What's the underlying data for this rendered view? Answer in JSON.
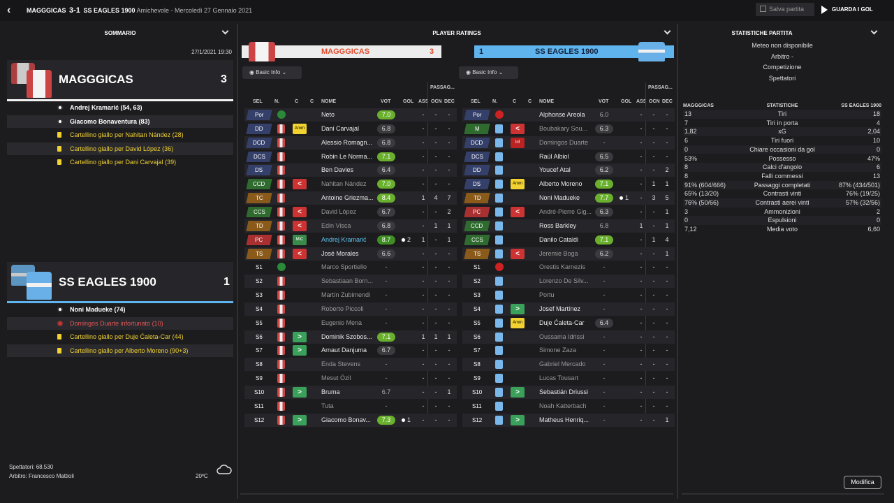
{
  "header": {
    "home": "MAGGGICAS",
    "score": "3-1",
    "away": "SS EAGLES 1900",
    "meta": "Amichevole - Mercoledì 27 Gennaio 2021",
    "save_label": "Salva partita",
    "goals_label": "GUARDA I GOL"
  },
  "summary": {
    "title": "SOMMARIO",
    "datetime": "27/1/2021 19:30",
    "home": {
      "name": "MAGGGICAS",
      "score": "3",
      "events": [
        {
          "type": "goal",
          "text": "Andrej Kramarić (54, 63)"
        },
        {
          "type": "goal",
          "text": "Giacomo Bonaventura (83)"
        },
        {
          "type": "yellow",
          "text": "Cartellino giallo per Nahitan Nández (28)"
        },
        {
          "type": "yellow",
          "text": "Cartellino giallo per David López (36)"
        },
        {
          "type": "yellow",
          "text": "Cartellino giallo per Dani Carvajal (39)"
        }
      ]
    },
    "away": {
      "name": "SS EAGLES 1900",
      "score": "1",
      "events": [
        {
          "type": "goal",
          "text": "Noni Madueke (74)"
        },
        {
          "type": "injury",
          "text": "Domingos Duarte infortunato (10)"
        },
        {
          "type": "yellow",
          "text": "Cartellino giallo per Duje Ćaleta-Car (44)"
        },
        {
          "type": "yellow",
          "text": "Cartellino giallo per Alberto Moreno (90+3)"
        }
      ]
    },
    "spectators": "Spettatori: 68.530",
    "referee": "Arbitro: Francesco Mattioli",
    "temp": "20ºC"
  },
  "ratings": {
    "title": "PLAYER RATINGS",
    "home_name": "MAGGGICAS",
    "home_score": "3",
    "away_name": "SS EAGLES 1900",
    "away_score": "1",
    "filter_label": "Basic Info",
    "cols": {
      "sel": "SEL",
      "n": "N.",
      "c1": "C",
      "c2": "C",
      "name": "NOME",
      "vot": "VOT",
      "gol": "GOL",
      "ass": "ASS",
      "passag": "PASSAG...",
      "ocn": "OCN",
      "dec": "DEC"
    },
    "home": [
      {
        "pos": "Por",
        "pc": "#34406a",
        "name": "Neto",
        "vot": "7.0",
        "vs": "g",
        "gol": "",
        "ass": "-",
        "ocn": "-",
        "dec": "-"
      },
      {
        "pos": "DD",
        "pc": "#34406a",
        "badge": "Amm",
        "bt": "bamm",
        "name": "Dani Carvajal",
        "vot": "6.8",
        "gol": "",
        "ass": "-",
        "ocn": "-",
        "dec": "-"
      },
      {
        "pos": "DCD",
        "pc": "#34406a",
        "name": "Alessio Romagn...",
        "vot": "6.8",
        "gol": "",
        "ass": "-",
        "ocn": "-",
        "dec": "-"
      },
      {
        "pos": "DCS",
        "pc": "#34406a",
        "name": "Robin Le Norma...",
        "vot": "7.1",
        "vs": "g",
        "gol": "",
        "ass": "-",
        "ocn": "-",
        "dec": "-"
      },
      {
        "pos": "DS",
        "pc": "#34406a",
        "name": "Ben Davies",
        "vot": "6.4",
        "gol": "",
        "ass": "-",
        "ocn": "-",
        "dec": "-"
      },
      {
        "pos": "CCD",
        "pc": "#2f6a2f",
        "badge": "<",
        "bt": "bsubout",
        "name": "Nahitan Nández",
        "nd": "dim",
        "vot": "7.0",
        "vs": "g",
        "gol": "",
        "ass": "-",
        "ocn": "-",
        "dec": "-"
      },
      {
        "pos": "TC",
        "pc": "#8a5a1a",
        "name": "Antoine Griezma...",
        "vot": "8.4",
        "vs": "g",
        "gol": "",
        "ass": "1",
        "ocn": "4",
        "dec": "7"
      },
      {
        "pos": "CCS",
        "pc": "#2f6a2f",
        "badge": "<",
        "bt": "bsubout",
        "name": "David López",
        "nd": "dim",
        "vot": "6.7",
        "gol": "",
        "ass": "-",
        "ocn": "-",
        "dec": "2"
      },
      {
        "pos": "TD",
        "pc": "#8a5a1a",
        "badge": "<",
        "bt": "bsubout",
        "name": "Edin Visca",
        "nd": "dim",
        "vot": "6.8",
        "gol": "",
        "ass": "-",
        "ocn": "1",
        "dec": "1"
      },
      {
        "pos": "PC",
        "pc": "#a83030",
        "badge": "MiC",
        "bt": "bmic",
        "name": "Andrej Kramarić",
        "nd": "hl",
        "vot": "8.7",
        "vs": "gg",
        "gol": "2",
        "ass": "1",
        "ocn": "-",
        "dec": "1"
      },
      {
        "pos": "TS",
        "pc": "#8a5a1a",
        "badge": "<",
        "bt": "bsubout",
        "name": "José Morales",
        "vot": "6.6",
        "gol": "",
        "ass": "-",
        "ocn": "-",
        "dec": "-"
      },
      {
        "pos": "S1",
        "pc": "",
        "name": "Marco Sportiello",
        "nd": "dim",
        "vot": "-",
        "vs": "n",
        "gol": "",
        "ass": "-",
        "ocn": "-",
        "dec": "-"
      },
      {
        "pos": "S2",
        "pc": "",
        "name": "Sebastiaan Born...",
        "nd": "dim",
        "vot": "-",
        "vs": "n",
        "gol": "",
        "ass": "-",
        "ocn": "-",
        "dec": "-"
      },
      {
        "pos": "S3",
        "pc": "",
        "name": "Martín Zubimendi",
        "nd": "dim",
        "vot": "-",
        "vs": "n",
        "gol": "",
        "ass": "-",
        "ocn": "-",
        "dec": "-"
      },
      {
        "pos": "S4",
        "pc": "",
        "name": "Roberto Piccoli",
        "nd": "dim",
        "vot": "-",
        "vs": "n",
        "gol": "",
        "ass": "-",
        "ocn": "-",
        "dec": "-"
      },
      {
        "pos": "S5",
        "pc": "",
        "name": "Eugenio Mena",
        "nd": "dim",
        "vot": "-",
        "vs": "n",
        "gol": "",
        "ass": "-",
        "ocn": "-",
        "dec": "-"
      },
      {
        "pos": "S6",
        "pc": "",
        "badge": ">",
        "bt": "bsubin",
        "name": "Dominik Szobos...",
        "vot": "7.1",
        "vs": "g",
        "gol": "",
        "ass": "1",
        "ocn": "1",
        "dec": "1"
      },
      {
        "pos": "S7",
        "pc": "",
        "badge": ">",
        "bt": "bsubin",
        "name": "Arnaut Danjuma",
        "vot": "6.7",
        "gol": "",
        "ass": "-",
        "ocn": "-",
        "dec": "-"
      },
      {
        "pos": "S8",
        "pc": "",
        "name": "Enda Stevens",
        "nd": "dim",
        "vot": "-",
        "vs": "n",
        "gol": "",
        "ass": "-",
        "ocn": "-",
        "dec": "-"
      },
      {
        "pos": "S9",
        "pc": "",
        "name": "Mesut Özil",
        "nd": "dim",
        "vot": "-",
        "vs": "n",
        "gol": "",
        "ass": "-",
        "ocn": "-",
        "dec": "-"
      },
      {
        "pos": "S10",
        "pc": "",
        "badge": ">",
        "bt": "bsubin",
        "name": "Bruma",
        "vot": "6.7",
        "vs": "n",
        "gol": "",
        "ass": "-",
        "ocn": "-",
        "dec": "1"
      },
      {
        "pos": "S11",
        "pc": "",
        "name": "Tuta",
        "nd": "dim",
        "vot": "-",
        "vs": "n",
        "gol": "",
        "ass": "-",
        "ocn": "-",
        "dec": "-"
      },
      {
        "pos": "S12",
        "pc": "",
        "badge": ">",
        "bt": "bsubin",
        "name": "Giacomo Bonav...",
        "vot": "7.3",
        "vs": "g",
        "gol": "1",
        "ass": "-",
        "ocn": "-",
        "dec": "-"
      }
    ],
    "away": [
      {
        "pos": "Por",
        "pc": "#34406a",
        "name": "Alphonse Areola",
        "vot": "6.0",
        "vs": "n",
        "gol": "",
        "ass": "-",
        "ocn": "-",
        "dec": "-"
      },
      {
        "pos": "M",
        "pc": "#2f6a2f",
        "badge": "<",
        "bt": "bsubout",
        "name": "Boubakary Sou...",
        "nd": "dim",
        "vot": "6.3",
        "gol": "",
        "ass": "-",
        "ocn": "-",
        "dec": "-"
      },
      {
        "pos": "DCD",
        "pc": "#34406a",
        "badge": "Inf",
        "bt": "binf",
        "name": "Domingos Duarte",
        "nd": "dim",
        "vot": "-",
        "vs": "n",
        "gol": "",
        "ass": "-",
        "ocn": "-",
        "dec": "-"
      },
      {
        "pos": "DCS",
        "pc": "#34406a",
        "name": "Raúl Albiol",
        "vot": "6.5",
        "gol": "",
        "ass": "-",
        "ocn": "-",
        "dec": "-"
      },
      {
        "pos": "DD",
        "pc": "#34406a",
        "name": "Youcef Atal",
        "vot": "6.2",
        "gol": "",
        "ass": "-",
        "ocn": "-",
        "dec": "2"
      },
      {
        "pos": "DS",
        "pc": "#34406a",
        "badge": "Amm",
        "bt": "bamm",
        "name": "Alberto Moreno",
        "vot": "7.1",
        "vs": "g",
        "gol": "",
        "ass": "-",
        "ocn": "1",
        "dec": "1"
      },
      {
        "pos": "TD",
        "pc": "#8a5a1a",
        "name": "Noni Madueke",
        "vot": "7.7",
        "vs": "g",
        "gol": "1",
        "ass": "-",
        "ocn": "3",
        "dec": "5"
      },
      {
        "pos": "PC",
        "pc": "#a83030",
        "badge": "<",
        "bt": "bsubout",
        "name": "André-Pierre Gig...",
        "nd": "dim",
        "vot": "6.3",
        "gol": "",
        "ass": "-",
        "ocn": "-",
        "dec": "1"
      },
      {
        "pos": "CCD",
        "pc": "#2f6a2f",
        "name": "Ross Barkley",
        "vot": "6.8",
        "vs": "n",
        "gol": "",
        "ass": "1",
        "ocn": "-",
        "dec": "1"
      },
      {
        "pos": "CCS",
        "pc": "#2f6a2f",
        "name": "Danilo Cataldi",
        "vot": "7.1",
        "vs": "g",
        "gol": "",
        "ass": "-",
        "ocn": "1",
        "dec": "4"
      },
      {
        "pos": "TS",
        "pc": "#8a5a1a",
        "badge": "<",
        "bt": "bsubout",
        "name": "Jeremie Boga",
        "nd": "dim",
        "vot": "6.2",
        "gol": "",
        "ass": "-",
        "ocn": "-",
        "dec": "1"
      },
      {
        "pos": "S1",
        "pc": "",
        "name": "Orestis Karnezis",
        "nd": "dim",
        "vot": "-",
        "vs": "n",
        "gol": "",
        "ass": "-",
        "ocn": "-",
        "dec": "-"
      },
      {
        "pos": "S2",
        "pc": "",
        "name": "Lorenzo De Silv...",
        "nd": "dim",
        "vot": "-",
        "vs": "n",
        "gol": "",
        "ass": "-",
        "ocn": "-",
        "dec": "-"
      },
      {
        "pos": "S3",
        "pc": "",
        "name": "Portu",
        "nd": "dim",
        "vot": "-",
        "vs": "n",
        "gol": "",
        "ass": "-",
        "ocn": "-",
        "dec": "-"
      },
      {
        "pos": "S4",
        "pc": "",
        "badge": ">",
        "bt": "bsubin",
        "name": "Josef Martínez",
        "vot": "-",
        "vs": "n",
        "gol": "",
        "ass": "-",
        "ocn": "-",
        "dec": "-"
      },
      {
        "pos": "S5",
        "pc": "",
        "badge": "Amm",
        "bt": "bamm",
        "name": "Duje Ćaleta-Car",
        "vot": "6.4",
        "gol": "",
        "ass": "-",
        "ocn": "-",
        "dec": "-"
      },
      {
        "pos": "S6",
        "pc": "",
        "name": "Oussama Idrissi",
        "nd": "dim",
        "vot": "-",
        "vs": "n",
        "gol": "",
        "ass": "-",
        "ocn": "-",
        "dec": "-"
      },
      {
        "pos": "S7",
        "pc": "",
        "name": "Simone Zaza",
        "nd": "dim",
        "vot": "-",
        "vs": "n",
        "gol": "",
        "ass": "-",
        "ocn": "-",
        "dec": "-"
      },
      {
        "pos": "S8",
        "pc": "",
        "name": "Gabriel Mercado",
        "nd": "dim",
        "vot": "-",
        "vs": "n",
        "gol": "",
        "ass": "-",
        "ocn": "-",
        "dec": "-"
      },
      {
        "pos": "S9",
        "pc": "",
        "name": "Lucas Tousart",
        "nd": "dim",
        "vot": "-",
        "vs": "n",
        "gol": "",
        "ass": "-",
        "ocn": "-",
        "dec": "-"
      },
      {
        "pos": "S10",
        "pc": "",
        "badge": ">",
        "bt": "bsubin",
        "name": "Sebastián Driussi",
        "vot": "-",
        "vs": "n",
        "gol": "",
        "ass": "-",
        "ocn": "-",
        "dec": "-"
      },
      {
        "pos": "S11",
        "pc": "",
        "name": "Noah Katterbach",
        "nd": "dim",
        "vot": "-",
        "vs": "n",
        "gol": "",
        "ass": "-",
        "ocn": "-",
        "dec": "-"
      },
      {
        "pos": "S12",
        "pc": "",
        "badge": ">",
        "bt": "bsubin",
        "name": "Matheus Henriq...",
        "vot": "-",
        "vs": "n",
        "gol": "",
        "ass": "-",
        "ocn": "-",
        "dec": "1"
      }
    ]
  },
  "stats": {
    "title": "STATISTICHE PARTITA",
    "conditions": [
      "Meteo non disponibile",
      "Arbitro -",
      "Competizione",
      "Spettatori"
    ],
    "home_label": "MAGGGICAS",
    "mid_label": "STATISTICHE",
    "away_label": "SS EAGLES 1900",
    "rows": [
      {
        "l": "13",
        "c": "Tiri",
        "r": "18"
      },
      {
        "l": "7",
        "c": "Tiri in porta",
        "r": "4"
      },
      {
        "l": "1,82",
        "c": "xG",
        "r": "2,04"
      },
      {
        "l": "6",
        "c": "Tiri fuori",
        "r": "10"
      },
      {
        "l": "0",
        "c": "Chiare occasioni da gol",
        "r": "0"
      },
      {
        "l": "53%",
        "c": "Possesso",
        "r": "47%"
      },
      {
        "l": "8",
        "c": "Calci d'angolo",
        "r": "6"
      },
      {
        "l": "8",
        "c": "Falli commessi",
        "r": "13"
      },
      {
        "l": "91% (604/666)",
        "c": "Passaggi completati",
        "r": "87% (434/501)"
      },
      {
        "l": "65% (13/20)",
        "c": "Contrasti vinti",
        "r": "76% (19/25)"
      },
      {
        "l": "76% (50/66)",
        "c": "Contrasti aerei vinti",
        "r": "57% (32/56)"
      },
      {
        "l": "3",
        "c": "Ammonizioni",
        "r": "2"
      },
      {
        "l": "0",
        "c": "Espulsioni",
        "r": "0"
      },
      {
        "l": "7,12",
        "c": "Media voto",
        "r": "6,60"
      }
    ],
    "modify_label": "Modifica"
  }
}
